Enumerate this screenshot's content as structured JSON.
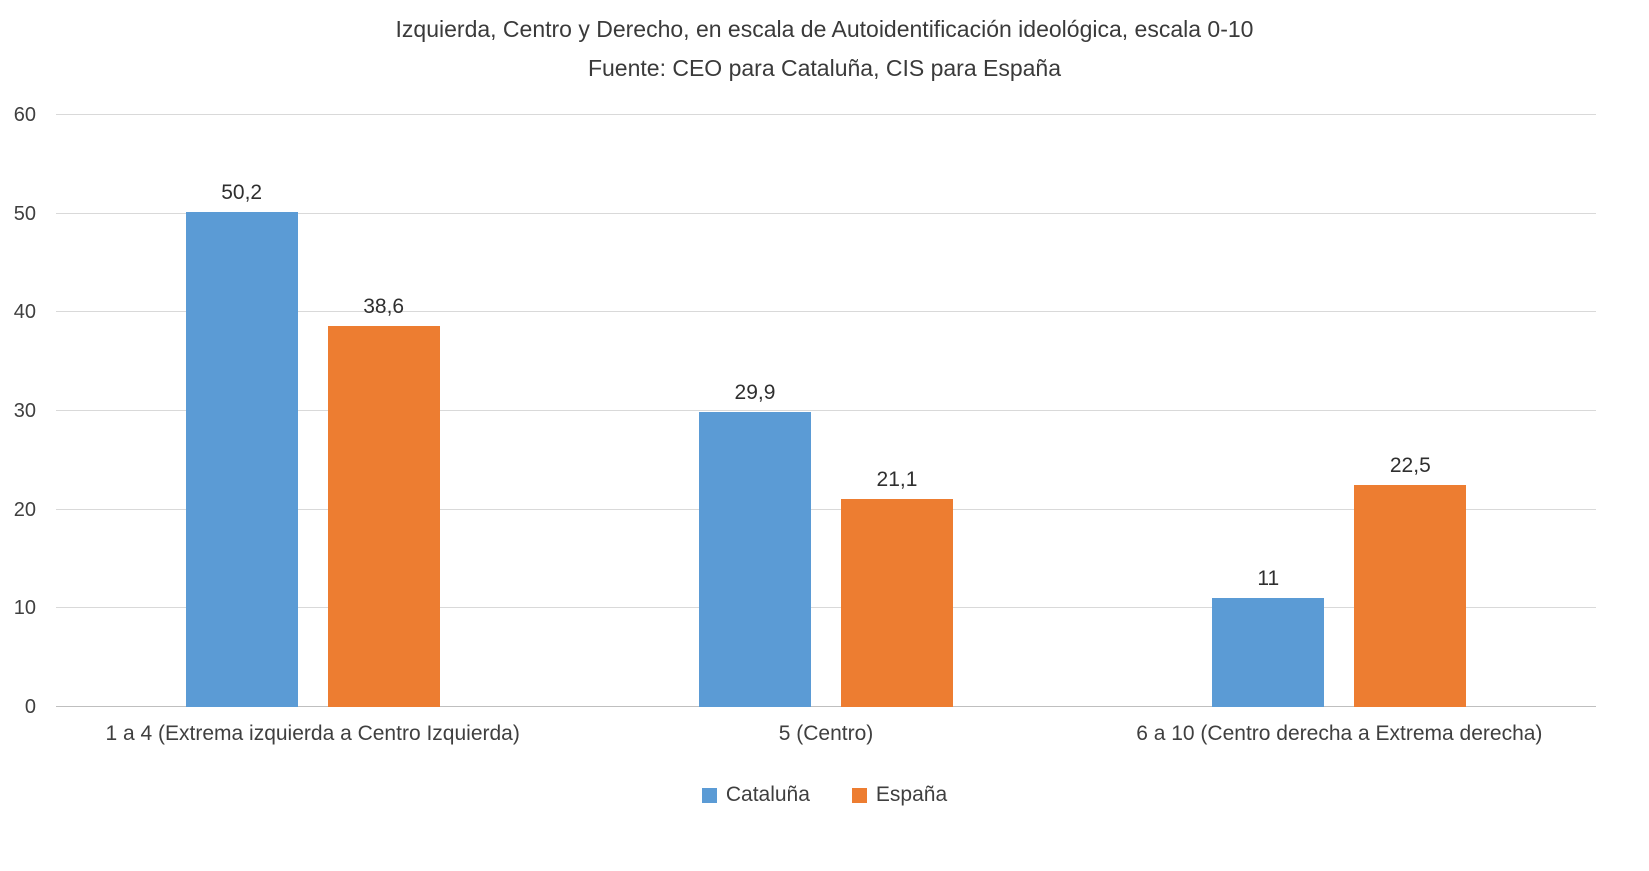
{
  "chart_data": {
    "type": "bar",
    "title": "Izquierda, Centro y Derecho, en escala de Autoidentificación ideológica, escala 0-10",
    "subtitle": "Fuente: CEO para Cataluña, CIS para España",
    "categories": [
      "1 a 4 (Extrema izquierda a Centro Izquierda)",
      "5 (Centro)",
      "6 a 10 (Centro derecha a Extrema derecha)"
    ],
    "series": [
      {
        "name": "Cataluña",
        "color": "#5B9BD5",
        "values": [
          50.2,
          29.9,
          11
        ],
        "labels": [
          "50,2",
          "29,9",
          "11"
        ]
      },
      {
        "name": "España",
        "color": "#ED7D31",
        "values": [
          38.6,
          21.1,
          22.5
        ],
        "labels": [
          "38,6",
          "21,1",
          "22,5"
        ]
      }
    ],
    "y_axis": {
      "min": 0,
      "max": 60,
      "step": 10,
      "ticks": [
        0,
        10,
        20,
        30,
        40,
        50,
        60
      ]
    },
    "grid": true,
    "legend_position": "bottom",
    "colors": {
      "gridline": "#d9d9d9",
      "axis_line": "#bfbfbf",
      "text": "#3f3f3f"
    }
  }
}
